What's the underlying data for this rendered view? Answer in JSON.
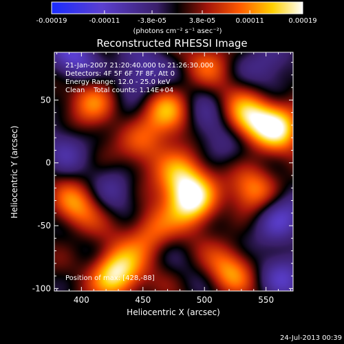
{
  "chart_data": {
    "type": "heatmap",
    "title": "Reconstructed RHESSI Image",
    "xlabel": "Heliocentric X (arcsec)",
    "ylabel": "Heliocentric Y (arcsec)",
    "xlim": [
      378,
      572
    ],
    "ylim": [
      -102,
      88
    ],
    "x_ticks": [
      "400",
      "450",
      "500",
      "550"
    ],
    "x_tick_values": [
      400,
      450,
      500,
      550
    ],
    "y_ticks": [
      "50",
      "0",
      "-50",
      "-100"
    ],
    "y_tick_values": [
      50,
      0,
      -50,
      -100
    ],
    "colorbar": {
      "colormap": "rhessi-blue-black-red-yellow-white",
      "range": [
        -0.00019,
        0.00019
      ],
      "tick_labels": [
        "-0.00019",
        "-0.00011",
        "-3.8e-05",
        "3.8e-05",
        "0.00011",
        "0.00019"
      ],
      "tick_values": [
        -0.00019,
        -0.00011,
        -3.8e-05,
        3.8e-05,
        0.00011,
        0.00019
      ],
      "unit_label": "(photons cm⁻² s⁻¹ asec⁻²)"
    },
    "annotations": [
      "21-Jan-2007 21:20:40.000 to 21:26:30.000",
      "Detectors: 4F 5F 6F 7F 8F, Att 0",
      "Energy Range: 12.0 - 25.0 keV",
      "Clean    Total counts: 1.14E+04"
    ],
    "position_label": "Position of max: [428,-88]",
    "blobs": [
      {
        "x": 428,
        "y": -88,
        "v": 1.0
      },
      {
        "x": 490,
        "y": -30,
        "v": 0.95
      },
      {
        "x": 560,
        "y": 30,
        "v": 0.85
      },
      {
        "x": 535,
        "y": 35,
        "v": 0.75
      },
      {
        "x": 470,
        "y": 40,
        "v": 0.6
      },
      {
        "x": 410,
        "y": 50,
        "v": 0.55
      },
      {
        "x": 455,
        "y": -55,
        "v": 0.55
      },
      {
        "x": 480,
        "y": -10,
        "v": 0.7
      },
      {
        "x": 540,
        "y": -20,
        "v": 0.6
      },
      {
        "x": 520,
        "y": -85,
        "v": 0.55
      },
      {
        "x": 395,
        "y": -35,
        "v": 0.55
      },
      {
        "x": 450,
        "y": 15,
        "v": 0.45
      },
      {
        "x": 505,
        "y": 80,
        "v": 0.35
      },
      {
        "x": 395,
        "y": 85,
        "v": -0.55
      },
      {
        "x": 445,
        "y": 70,
        "v": -0.5
      },
      {
        "x": 560,
        "y": -45,
        "v": -0.55
      },
      {
        "x": 565,
        "y": -90,
        "v": -0.4
      },
      {
        "x": 430,
        "y": -20,
        "v": -0.25
      },
      {
        "x": 500,
        "y": 30,
        "v": -0.3
      },
      {
        "x": 385,
        "y": 10,
        "v": -0.3
      },
      {
        "x": 555,
        "y": 80,
        "v": -0.35
      },
      {
        "x": 520,
        "y": 10,
        "v": -0.2
      }
    ],
    "footer_date": "24-Jul-2013 00:39"
  }
}
